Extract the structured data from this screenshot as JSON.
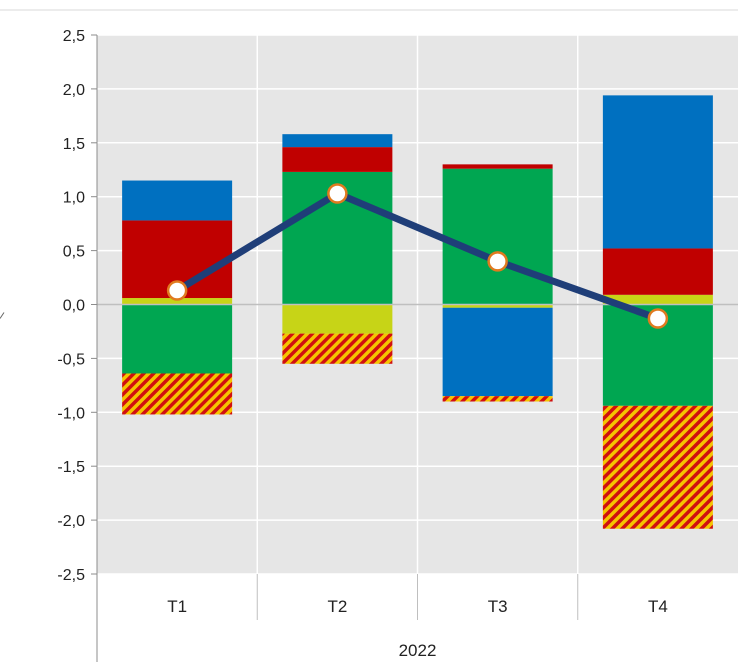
{
  "chart_data": {
    "type": "bar",
    "subtype": "stacked-with-line",
    "title": "",
    "xlabel": "",
    "ylabel": "",
    "categories": [
      "T1",
      "T2",
      "T3",
      "T4"
    ],
    "group_label": "2022",
    "ylim": [
      -2.5,
      2.5
    ],
    "yticks": [
      "2,5",
      "2,0",
      "1,5",
      "1,0",
      "0,5",
      "0,0",
      "-0,5",
      "-1,0",
      "-1,5",
      "-2,0",
      "-2,5"
    ],
    "ytick_values": [
      2.5,
      2.0,
      1.5,
      1.0,
      0.5,
      0.0,
      -0.5,
      -1.0,
      -1.5,
      -2.0,
      -2.5
    ],
    "grid": true,
    "legend": "none",
    "plot_background": "#e6e6e6",
    "series": [
      {
        "color": "#c7d417",
        "pattern": "solid",
        "values": [
          0.06,
          -0.27,
          -0.03,
          0.09
        ]
      },
      {
        "color": "#00a651",
        "pattern": "solid",
        "values": [
          -0.64,
          1.23,
          1.26,
          -0.94
        ]
      },
      {
        "color": "#c00000",
        "pattern": "solid",
        "values": [
          0.72,
          0.23,
          0.04,
          0.43
        ]
      },
      {
        "color": "#0070c0",
        "pattern": "solid",
        "values": [
          0.37,
          0.12,
          -0.82,
          1.42
        ]
      },
      {
        "color": "#c00000",
        "pattern": "hatched-yellow",
        "values": [
          -0.38,
          -0.28,
          -0.05,
          -1.14
        ]
      }
    ],
    "line": {
      "color": "#1f3e78",
      "marker": "circle",
      "values": [
        0.13,
        1.03,
        0.4,
        -0.13
      ]
    }
  }
}
